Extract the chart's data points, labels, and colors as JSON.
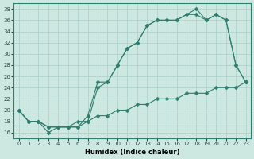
{
  "xlabel": "Humidex (Indice chaleur)",
  "background_color": "#cce8e0",
  "line_color": "#2e7d6e",
  "grid_color": "#aacfc8",
  "xlim": [
    -0.5,
    23.5
  ],
  "ylim": [
    15,
    39
  ],
  "xticks": [
    0,
    1,
    2,
    3,
    4,
    5,
    6,
    7,
    8,
    9,
    10,
    11,
    12,
    13,
    14,
    15,
    16,
    17,
    18,
    19,
    20,
    21,
    22,
    23
  ],
  "yticks": [
    16,
    18,
    20,
    22,
    24,
    26,
    28,
    30,
    32,
    34,
    36,
    38
  ],
  "line1_x": [
    0,
    1,
    2,
    3,
    4,
    5,
    6,
    7,
    8,
    9,
    10,
    11,
    12,
    13,
    14,
    15,
    16,
    17,
    18,
    19,
    20,
    21,
    22,
    23
  ],
  "line1_y": [
    20,
    18,
    18,
    16,
    17,
    17,
    17,
    19,
    25,
    25,
    28,
    31,
    32,
    35,
    36,
    36,
    36,
    37,
    38,
    36,
    37,
    36,
    28,
    25
  ],
  "line2_x": [
    0,
    1,
    2,
    3,
    4,
    5,
    6,
    7,
    8,
    9,
    10,
    11,
    12,
    13,
    14,
    15,
    16,
    17,
    18,
    19,
    20,
    21,
    22,
    23
  ],
  "line2_y": [
    20,
    18,
    18,
    17,
    17,
    17,
    17,
    18,
    24,
    25,
    28,
    31,
    32,
    35,
    36,
    36,
    36,
    37,
    37,
    36,
    37,
    36,
    28,
    25
  ],
  "line3_x": [
    0,
    1,
    2,
    3,
    4,
    5,
    6,
    7,
    8,
    9,
    10,
    11,
    12,
    13,
    14,
    15,
    16,
    17,
    18,
    19,
    20,
    21,
    22,
    23
  ],
  "line3_y": [
    20,
    18,
    18,
    17,
    17,
    17,
    18,
    18,
    19,
    19,
    20,
    20,
    21,
    21,
    22,
    22,
    22,
    23,
    23,
    23,
    24,
    24,
    24,
    25
  ],
  "markersize": 2.5
}
